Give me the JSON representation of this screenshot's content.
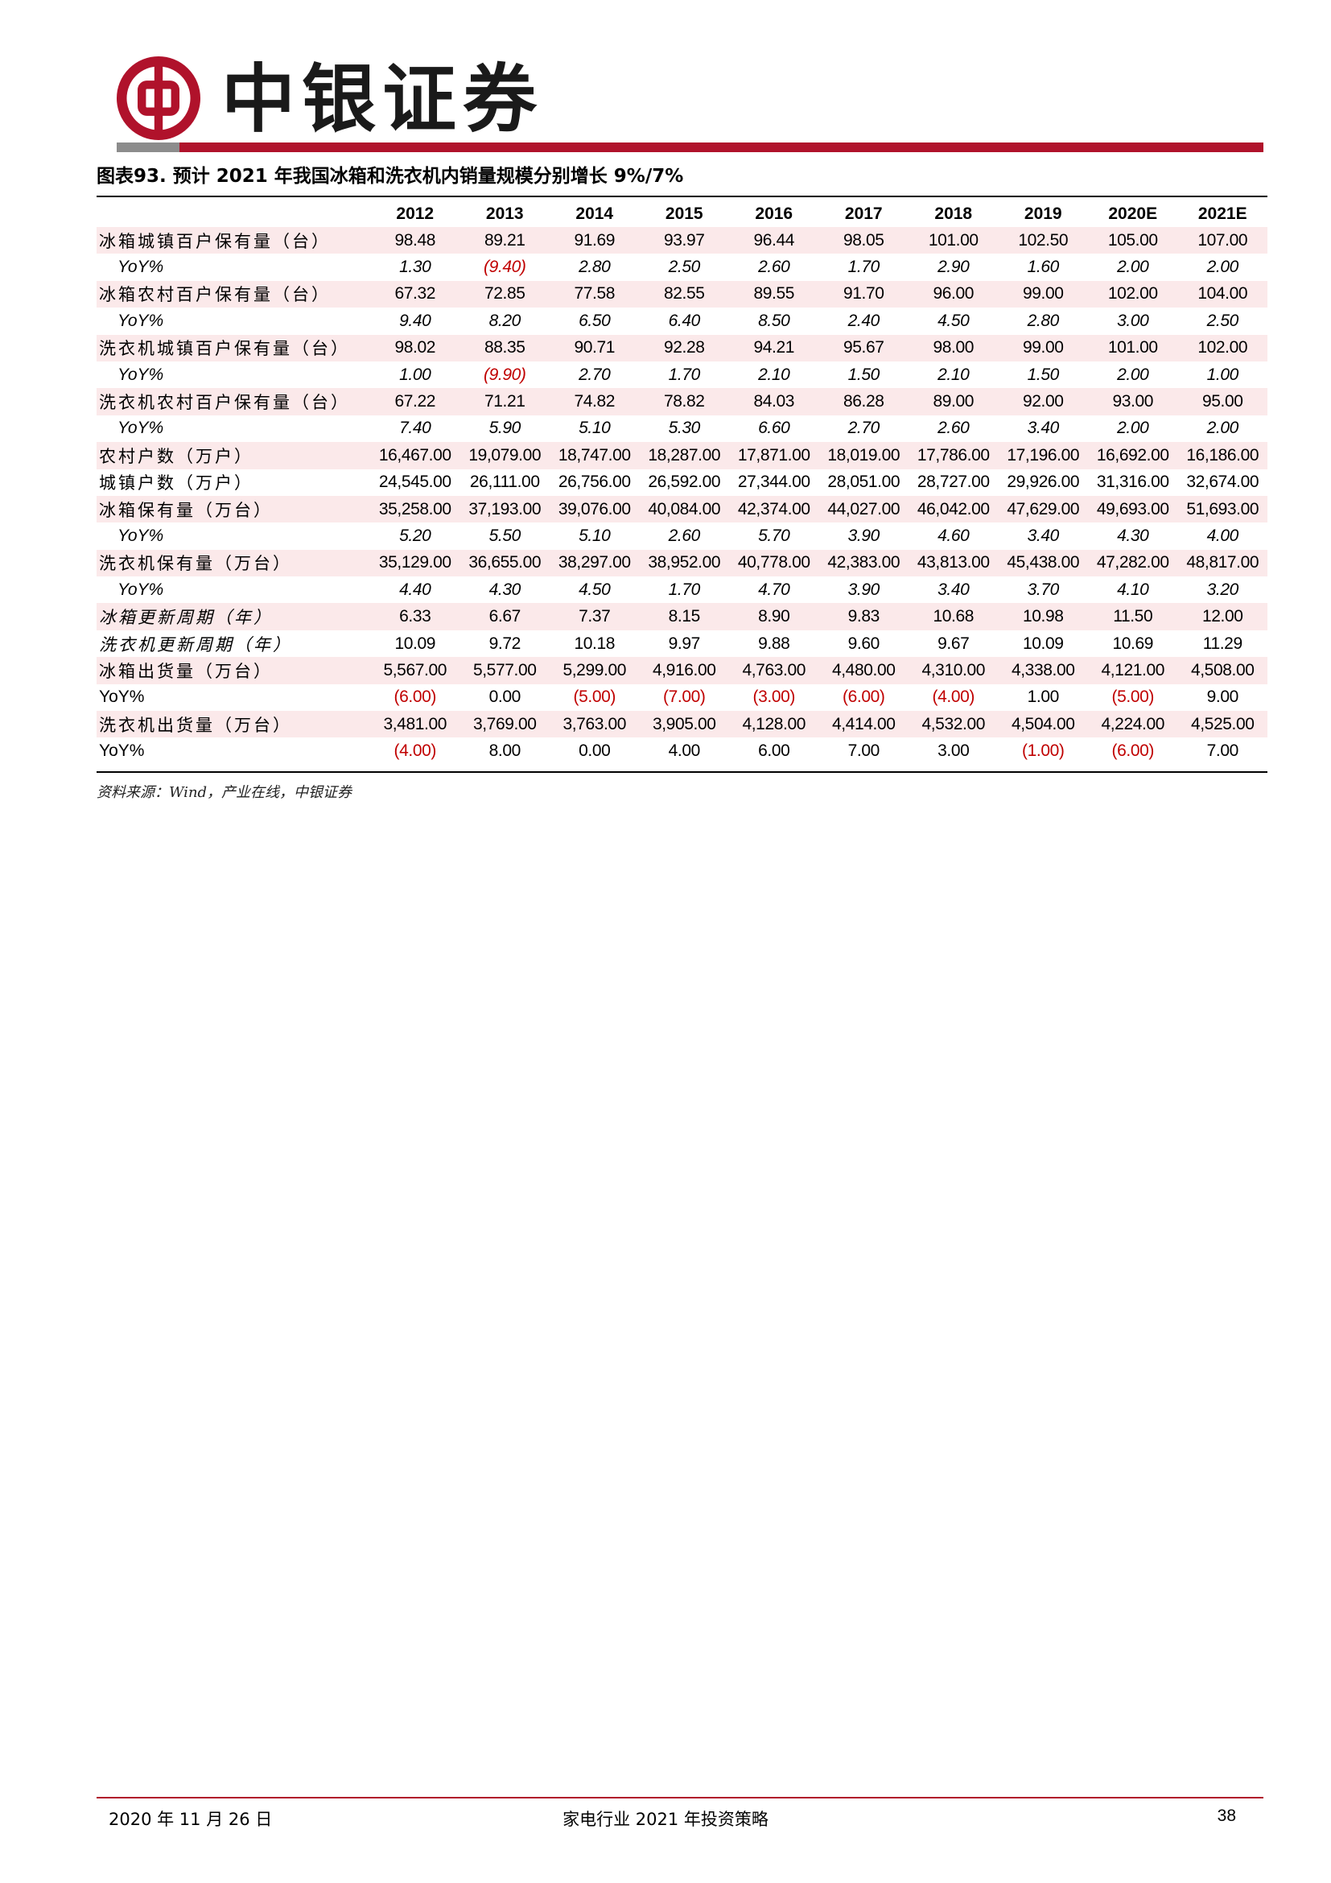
{
  "header": {
    "brand_name": "中银证券",
    "logo_icon": "bank-of-china-logo-icon",
    "accent_color": "#b0122b"
  },
  "caption": "图表93. 预计 2021 年我国冰箱和洗衣机内销量规模分别增长 9%/7%",
  "table": {
    "years": [
      "2012",
      "2013",
      "2014",
      "2015",
      "2016",
      "2017",
      "2018",
      "2019",
      "2020E",
      "2021E"
    ],
    "rows": [
      {
        "label": "冰箱城镇百户保有量（台）",
        "kind": "main",
        "values": [
          "98.48",
          "89.21",
          "91.69",
          "93.97",
          "96.44",
          "98.05",
          "101.00",
          "102.50",
          "105.00",
          "107.00"
        ]
      },
      {
        "label": "YoY%",
        "kind": "yoy",
        "values": [
          "1.30",
          "(9.40)",
          "2.80",
          "2.50",
          "2.60",
          "1.70",
          "2.90",
          "1.60",
          "2.00",
          "2.00"
        ]
      },
      {
        "label": "冰箱农村百户保有量（台）",
        "kind": "main",
        "values": [
          "67.32",
          "72.85",
          "77.58",
          "82.55",
          "89.55",
          "91.70",
          "96.00",
          "99.00",
          "102.00",
          "104.00"
        ]
      },
      {
        "label": "YoY%",
        "kind": "yoy",
        "values": [
          "9.40",
          "8.20",
          "6.50",
          "6.40",
          "8.50",
          "2.40",
          "4.50",
          "2.80",
          "3.00",
          "2.50"
        ]
      },
      {
        "label": "洗衣机城镇百户保有量（台）",
        "kind": "main",
        "values": [
          "98.02",
          "88.35",
          "90.71",
          "92.28",
          "94.21",
          "95.67",
          "98.00",
          "99.00",
          "101.00",
          "102.00"
        ]
      },
      {
        "label": "YoY%",
        "kind": "yoy",
        "values": [
          "1.00",
          "(9.90)",
          "2.70",
          "1.70",
          "2.10",
          "1.50",
          "2.10",
          "1.50",
          "2.00",
          "1.00"
        ]
      },
      {
        "label": "洗衣机农村百户保有量（台）",
        "kind": "main",
        "values": [
          "67.22",
          "71.21",
          "74.82",
          "78.82",
          "84.03",
          "86.28",
          "89.00",
          "92.00",
          "93.00",
          "95.00"
        ]
      },
      {
        "label": "YoY%",
        "kind": "yoy",
        "values": [
          "7.40",
          "5.90",
          "5.10",
          "5.30",
          "6.60",
          "2.70",
          "2.60",
          "3.40",
          "2.00",
          "2.00"
        ]
      },
      {
        "label": "农村户数（万户）",
        "kind": "main",
        "values": [
          "16,467.00",
          "19,079.00",
          "18,747.00",
          "18,287.00",
          "17,871.00",
          "18,019.00",
          "17,786.00",
          "17,196.00",
          "16,692.00",
          "16,186.00"
        ]
      },
      {
        "label": "城镇户数（万户）",
        "kind": "main",
        "values": [
          "24,545.00",
          "26,111.00",
          "26,756.00",
          "26,592.00",
          "27,344.00",
          "28,051.00",
          "28,727.00",
          "29,926.00",
          "31,316.00",
          "32,674.00"
        ]
      },
      {
        "label": "冰箱保有量（万台）",
        "kind": "main",
        "values": [
          "35,258.00",
          "37,193.00",
          "39,076.00",
          "40,084.00",
          "42,374.00",
          "44,027.00",
          "46,042.00",
          "47,629.00",
          "49,693.00",
          "51,693.00"
        ]
      },
      {
        "label": "YoY%",
        "kind": "yoy",
        "values": [
          "5.20",
          "5.50",
          "5.10",
          "2.60",
          "5.70",
          "3.90",
          "4.60",
          "3.40",
          "4.30",
          "4.00"
        ]
      },
      {
        "label": "洗衣机保有量（万台）",
        "kind": "main",
        "values": [
          "35,129.00",
          "36,655.00",
          "38,297.00",
          "38,952.00",
          "40,778.00",
          "42,383.00",
          "43,813.00",
          "45,438.00",
          "47,282.00",
          "48,817.00"
        ]
      },
      {
        "label": "YoY%",
        "kind": "yoy",
        "values": [
          "4.40",
          "4.30",
          "4.50",
          "1.70",
          "4.70",
          "3.90",
          "3.40",
          "3.70",
          "4.10",
          "3.20"
        ]
      },
      {
        "label": "冰箱更新周期（年）",
        "kind": "italic",
        "values": [
          "6.33",
          "6.67",
          "7.37",
          "8.15",
          "8.90",
          "9.83",
          "10.68",
          "10.98",
          "11.50",
          "12.00"
        ]
      },
      {
        "label": "洗衣机更新周期（年）",
        "kind": "italic",
        "values": [
          "10.09",
          "9.72",
          "10.18",
          "9.97",
          "9.88",
          "9.60",
          "9.67",
          "10.09",
          "10.69",
          "11.29"
        ]
      },
      {
        "label": "冰箱出货量（万台）",
        "kind": "main",
        "values": [
          "5,567.00",
          "5,577.00",
          "5,299.00",
          "4,916.00",
          "4,763.00",
          "4,480.00",
          "4,310.00",
          "4,338.00",
          "4,121.00",
          "4,508.00"
        ]
      },
      {
        "label": "YoY%",
        "kind": "yoy-flat",
        "values": [
          "(6.00)",
          "0.00",
          "(5.00)",
          "(7.00)",
          "(3.00)",
          "(6.00)",
          "(4.00)",
          "1.00",
          "(5.00)",
          "9.00"
        ]
      },
      {
        "label": "洗衣机出货量（万台）",
        "kind": "main",
        "values": [
          "3,481.00",
          "3,769.00",
          "3,763.00",
          "3,905.00",
          "4,128.00",
          "4,414.00",
          "4,532.00",
          "4,504.00",
          "4,224.00",
          "4,525.00"
        ]
      },
      {
        "label": "YoY%",
        "kind": "yoy-flat",
        "values": [
          "(4.00)",
          "8.00",
          "0.00",
          "4.00",
          "6.00",
          "7.00",
          "3.00",
          "(1.00)",
          "(6.00)",
          "7.00"
        ]
      }
    ],
    "negative_color": "#c00000",
    "shade_color": "#fbe9ea"
  },
  "source": "资料来源：Wind，产业在线，中银证券",
  "footer": {
    "date": "2020 年 11 月 26 日",
    "title": "家电行业 2021 年投资策略",
    "page": "38"
  }
}
